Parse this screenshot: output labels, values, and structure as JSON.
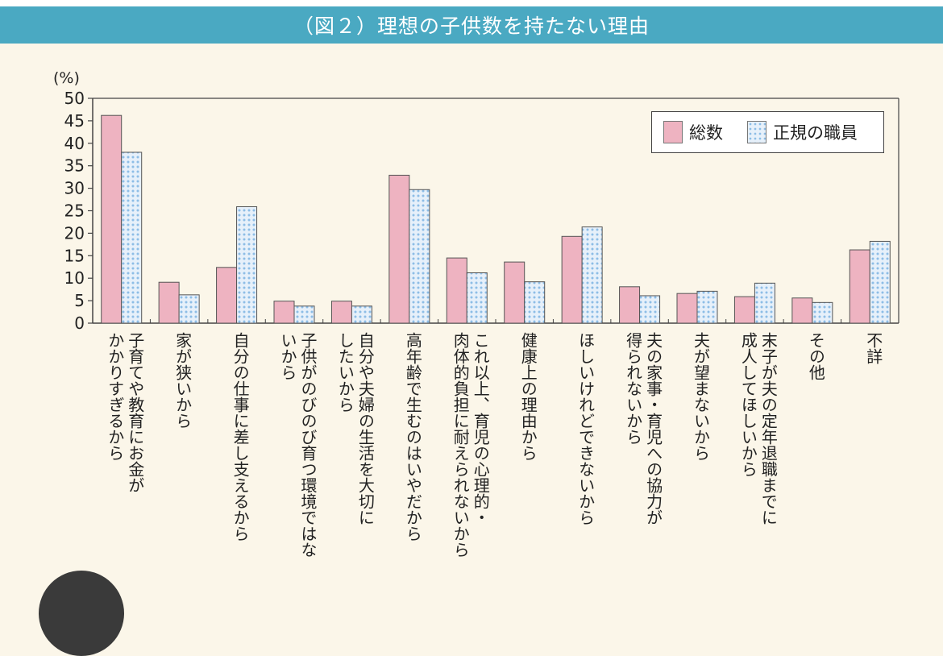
{
  "title": "（図２）理想の子供数を持たない理由",
  "chart_data": {
    "type": "bar",
    "ylabel": "(%)",
    "ylim": [
      0,
      50
    ],
    "yticks": [
      0,
      5,
      10,
      15,
      20,
      25,
      30,
      35,
      40,
      45,
      50
    ],
    "legend_position": "top-right",
    "categories": [
      "子育てや教育にお金がかかりすぎるから",
      "家が狭いから",
      "自分の仕事に差し支えるから",
      "子供がのびのび育つ環境ではないから",
      "自分や夫婦の生活を大切にしたいから",
      "高年齢で生むのはいやだから",
      "これ以上、育児の心理的・肉体的負担に耐えられないから",
      "健康上の理由から",
      "ほしいけれどできないから",
      "夫の家事・育児への協力が得られないから",
      "夫が望まないから",
      "末子が夫の定年退職までに成人してほしいから",
      "その他",
      "不詳"
    ],
    "category_lines": [
      [
        "子育てや教育にお金が",
        "かかりすぎるから"
      ],
      [
        "家が狭いから"
      ],
      [
        "自分の仕事に差し支えるから"
      ],
      [
        "子供がのびのび育つ環境ではな",
        "いから"
      ],
      [
        "自分や夫婦の生活を大切に",
        "したいから"
      ],
      [
        "高年齢で生むのはいやだから"
      ],
      [
        "これ以上、育児の心理的・",
        "肉体的負担に耐えられないから"
      ],
      [
        "健康上の理由から"
      ],
      [
        "ほしいけれどできないから"
      ],
      [
        "夫の家事・育児への協力が",
        "得られないから"
      ],
      [
        "夫が望まないから"
      ],
      [
        "末子が夫の定年退職までに",
        "成人してほしいから"
      ],
      [
        "その他"
      ],
      [
        "不詳"
      ]
    ],
    "series": [
      {
        "name": "総数",
        "color": "#eeb3c1",
        "values": [
          46.2,
          9.1,
          12.4,
          4.9,
          4.9,
          32.9,
          14.5,
          13.6,
          19.3,
          8.1,
          6.6,
          5.9,
          5.6,
          16.3
        ]
      },
      {
        "name": "正規の職員",
        "color": "#e6f0fa",
        "dot_color": "#8dbde6",
        "values": [
          38.0,
          6.3,
          25.9,
          3.8,
          3.8,
          29.7,
          11.2,
          9.2,
          21.4,
          6.1,
          7.1,
          8.9,
          4.6,
          18.2
        ]
      }
    ]
  }
}
